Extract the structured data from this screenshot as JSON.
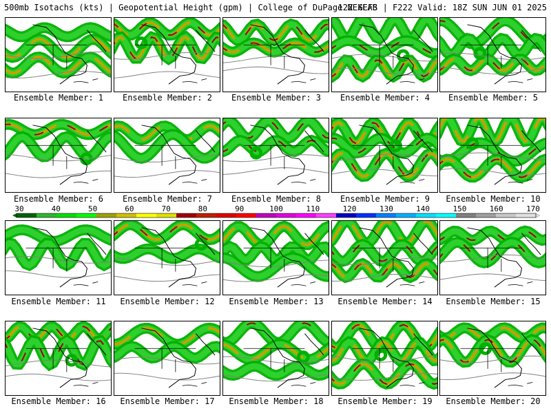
{
  "header": {
    "left": "500mb Isotachs (kts) | Geopotential Height (gpm) | College of DuPage NEXLAB",
    "right": "12Z GEFS | F222 Valid: 18Z SUN JUN 01 2025"
  },
  "members": [
    {
      "caption": "Ensemble Member: 1"
    },
    {
      "caption": "Ensemble Member: 2"
    },
    {
      "caption": "Ensemble Member: 3"
    },
    {
      "caption": "Ensemble Member: 4"
    },
    {
      "caption": "Ensemble Member: 5"
    },
    {
      "caption": "Ensemble Member: 6"
    },
    {
      "caption": "Ensemble Member: 7"
    },
    {
      "caption": "Ensemble Member: 8"
    },
    {
      "caption": "Ensemble Member: 9"
    },
    {
      "caption": "Ensemble Member: 10"
    },
    {
      "caption": "Ensemble Member: 11"
    },
    {
      "caption": "Ensemble Member: 12"
    },
    {
      "caption": "Ensemble Member: 13"
    },
    {
      "caption": "Ensemble Member: 14"
    },
    {
      "caption": "Ensemble Member: 15"
    },
    {
      "caption": "Ensemble Member: 16"
    },
    {
      "caption": "Ensemble Member: 17"
    },
    {
      "caption": "Ensemble Member: 18"
    },
    {
      "caption": "Ensemble Member: 19"
    },
    {
      "caption": "Ensemble Member: 20"
    }
  ],
  "colorbar": {
    "labels": [
      "30",
      "40",
      "50",
      "60",
      "70",
      "80",
      "90",
      "100",
      "110",
      "120",
      "130",
      "140",
      "150",
      "160",
      "170"
    ],
    "colors": [
      "#006400",
      "#2db82d",
      "#00e000",
      "#00ff00",
      "#a0a000",
      "#d0c000",
      "#ffff00",
      "#e0e000",
      "#a00000",
      "#c02000",
      "#e00000",
      "#ff0000",
      "#c000c0",
      "#e000e0",
      "#ff00ff",
      "#ff40ff",
      "#0000c0",
      "#0030ff",
      "#0080ff",
      "#00b0ff",
      "#00e0ff",
      "#00ffff",
      "#808080",
      "#a0a0a0",
      "#c8c8c8",
      "#e0e0e0"
    ]
  },
  "jet_colors": {
    "low": "#00b000",
    "mid": "#2dd02d",
    "high": "#c8a000",
    "core": "#a00000",
    "height_contour": "#808080",
    "map_lines": "#000000"
  }
}
